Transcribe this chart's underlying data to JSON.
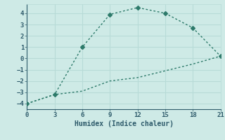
{
  "line1_x": [
    0,
    3,
    6,
    9,
    12,
    15,
    18,
    21
  ],
  "line1_y": [
    -4,
    -3.2,
    1.0,
    3.9,
    4.5,
    4.0,
    2.7,
    0.2
  ],
  "line2_x": [
    0,
    3,
    6,
    9,
    12,
    15,
    18,
    21
  ],
  "line2_y": [
    -4,
    -3.2,
    -2.9,
    -2.0,
    -1.7,
    -1.1,
    -0.5,
    0.2
  ],
  "line_color": "#2d7a6a",
  "marker": "D",
  "marker_size": 3,
  "xlabel": "Humidex (Indice chaleur)",
  "xlim": [
    0,
    21
  ],
  "ylim": [
    -4.5,
    4.8
  ],
  "xticks": [
    0,
    3,
    6,
    9,
    12,
    15,
    18,
    21
  ],
  "yticks": [
    -4,
    -3,
    -2,
    -1,
    0,
    1,
    2,
    3,
    4
  ],
  "bg_color": "#ceeae6",
  "grid_color": "#b8dbd7",
  "tick_color": "#2d5a6a"
}
